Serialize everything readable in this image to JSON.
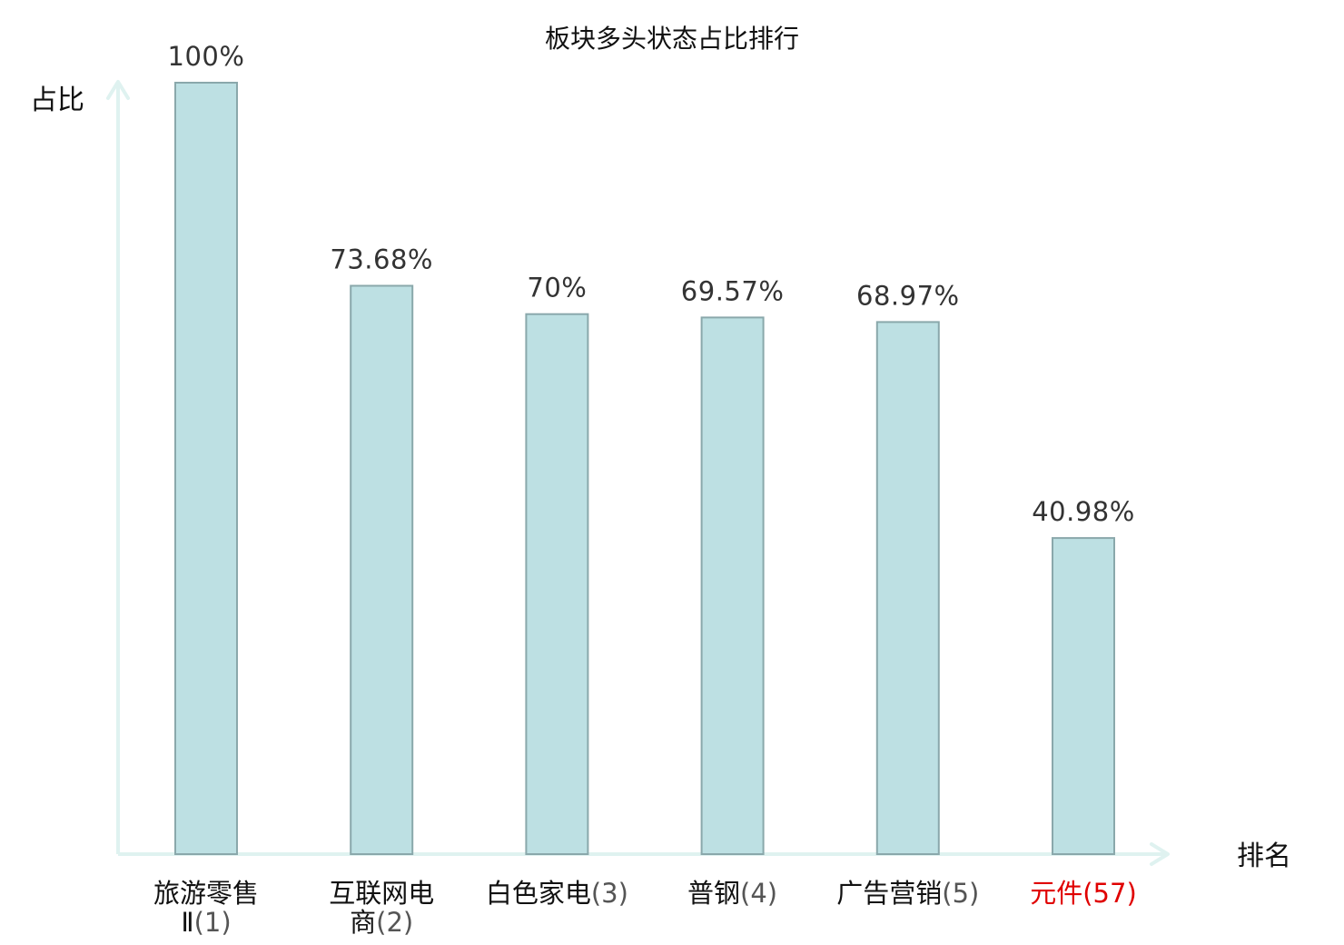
{
  "chart_data": {
    "type": "bar",
    "title": "板块多头状态占比排行",
    "ylabel": "占比",
    "xlabel": "排名",
    "ylim": [
      0,
      100
    ],
    "grid": false,
    "categories": [
      {
        "lines": [
          "旅游零售",
          "Ⅱ(1)"
        ],
        "name": "旅游零售Ⅱ",
        "rank": "(1)"
      },
      {
        "lines": [
          "互联网电",
          "商(2)"
        ],
        "name": "互联网电商",
        "rank": "(2)"
      },
      {
        "lines": [
          "白色家电(3)"
        ],
        "name": "白色家电",
        "rank": "(3)"
      },
      {
        "lines": [
          "普钢(4)"
        ],
        "name": "普钢",
        "rank": "(4)"
      },
      {
        "lines": [
          "广告营销(5)"
        ],
        "name": "广告营销",
        "rank": "(5)"
      },
      {
        "lines": [
          "元件(57)"
        ],
        "name": "元件",
        "rank": "(57)",
        "highlight": true
      }
    ],
    "values": [
      100,
      73.68,
      70,
      69.57,
      68.97,
      40.98
    ],
    "value_labels": [
      "100%",
      "73.68%",
      "70%",
      "69.57%",
      "68.97%",
      "40.98%"
    ]
  },
  "colors": {
    "bar_fill": "#bde0e3",
    "bar_stroke": "#8aa8ab",
    "axis": "#dff2f0",
    "highlight": "#e00000"
  }
}
